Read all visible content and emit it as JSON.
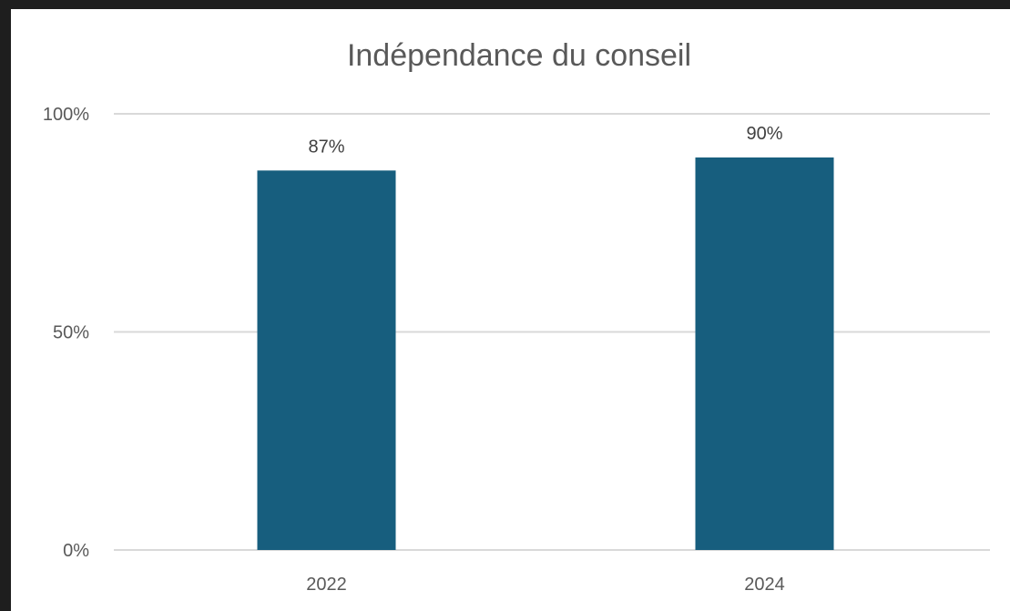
{
  "chart_data": {
    "type": "bar",
    "title": "Indépendance du conseil",
    "categories": [
      "2022",
      "2024"
    ],
    "values": [
      87,
      90
    ],
    "data_labels": [
      "87%",
      "90%"
    ],
    "y_ticks": [
      "0%",
      "50%",
      "100%"
    ],
    "ylim": [
      0,
      100
    ],
    "grid": true,
    "legend": "none",
    "bar_color": "#175e7e"
  }
}
